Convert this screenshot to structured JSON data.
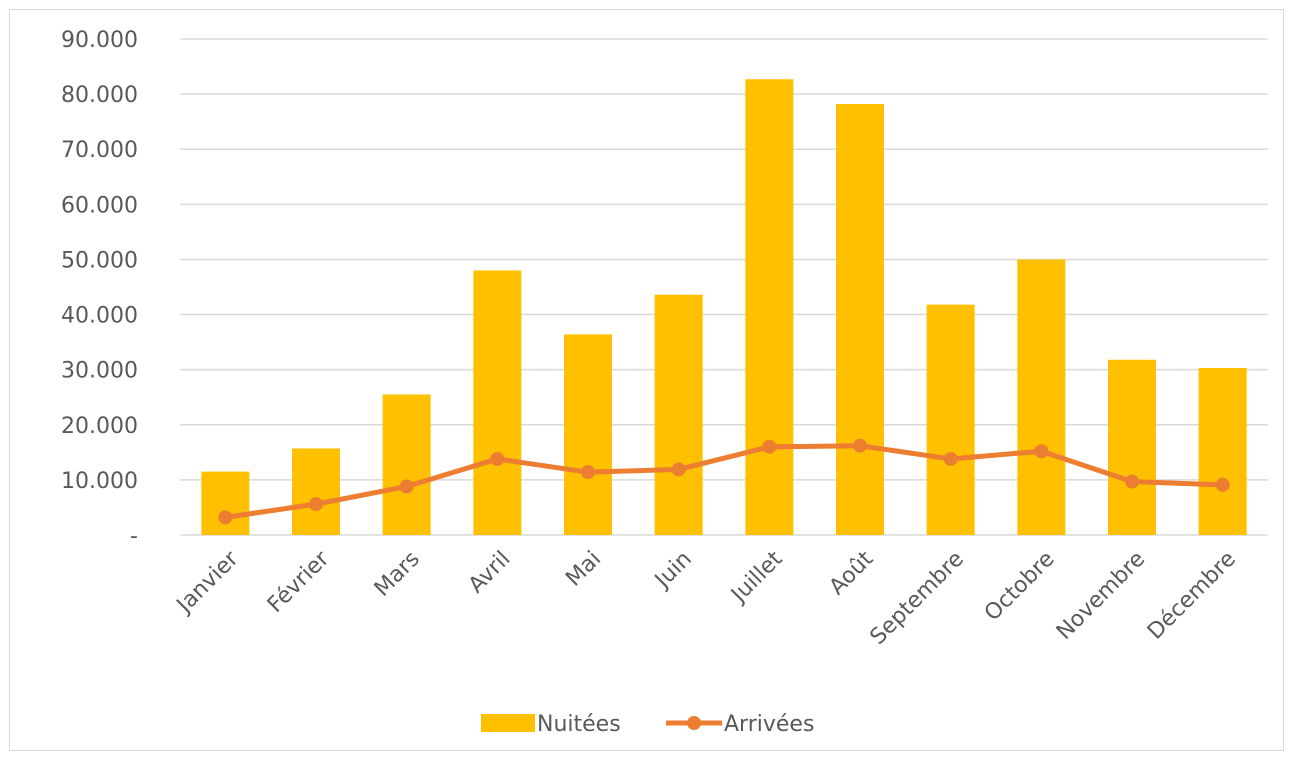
{
  "chart_data": {
    "type": "bar",
    "categories": [
      "Janvier",
      "Février",
      "Mars",
      "Avril",
      "Mai",
      "Juin",
      "Juillet",
      "Août",
      "Septembre",
      "Octobre",
      "Novembre",
      "Décembre"
    ],
    "series": [
      {
        "name": "Nuitées",
        "type": "bar",
        "color": "#FFC000",
        "values": [
          11500,
          15700,
          25500,
          48000,
          36400,
          43600,
          82700,
          78200,
          41800,
          50000,
          31800,
          30300
        ]
      },
      {
        "name": "Arrivées",
        "type": "line",
        "color": "#ED7D31",
        "values": [
          3200,
          5600,
          8800,
          13800,
          11400,
          11900,
          16000,
          16200,
          13800,
          15200,
          9700,
          9100
        ]
      }
    ],
    "ylim": [
      0,
      90000
    ],
    "yticks": [
      0,
      10000,
      20000,
      30000,
      40000,
      50000,
      60000,
      70000,
      80000,
      90000
    ],
    "ytick_labels": [
      "-",
      "10.000",
      "20.000",
      "30.000",
      "40.000",
      "50.000",
      "60.000",
      "70.000",
      "80.000",
      "90.000"
    ],
    "grid": true,
    "legend_position": "bottom",
    "title": "",
    "xlabel": "",
    "ylabel": ""
  }
}
